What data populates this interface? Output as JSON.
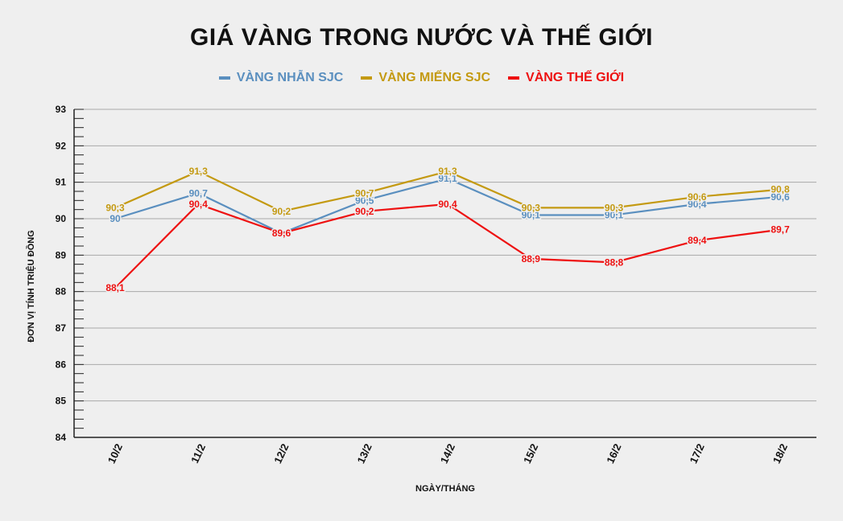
{
  "chart_data": {
    "type": "line",
    "title": "GIÁ VÀNG TRONG NƯỚC VÀ THẾ GIỚI",
    "xlabel": "NGÀY/THÁNG",
    "ylabel": "ĐƠN VỊ TÍNH TRIỆU ĐỒNG",
    "categories": [
      "10/2",
      "11/2",
      "12/2",
      "13/2",
      "14/2",
      "15/2",
      "16/2",
      "17/2",
      "18/2"
    ],
    "ylim": [
      84,
      93
    ],
    "yticks": [
      "84",
      "85",
      "86",
      "87",
      "88",
      "89",
      "90",
      "91",
      "92",
      "93"
    ],
    "grid": true,
    "legend_position": "top-center",
    "series": [
      {
        "name": "VÀNG NHẪN SJC",
        "color": "#5a8fbf",
        "values": [
          90,
          90.7,
          89.6,
          90.5,
          91.1,
          90.1,
          90.1,
          90.4,
          90.6
        ],
        "labels": [
          "90",
          "90,7",
          "",
          "90,5",
          "91,1",
          "90,1",
          "90,1",
          "90,4",
          "90,6"
        ]
      },
      {
        "name": "VÀNG MIẾNG SJC",
        "color": "#c49a12",
        "values": [
          90.3,
          91.3,
          90.2,
          90.7,
          91.3,
          90.3,
          90.3,
          90.6,
          90.8
        ],
        "labels": [
          "90,3",
          "91,3",
          "90,2",
          "90,7",
          "91,3",
          "90,3",
          "90,3",
          "90,6",
          "90,8"
        ]
      },
      {
        "name": "VÀNG THẾ GIỚI",
        "color": "#ee1111",
        "values": [
          88.1,
          90.4,
          89.6,
          90.2,
          90.4,
          88.9,
          88.8,
          89.4,
          89.7
        ],
        "labels": [
          "88,1",
          "90,4",
          "89,6",
          "90,2",
          "90,4",
          "88,9",
          "88,8",
          "89,4",
          "89,7"
        ]
      }
    ]
  }
}
